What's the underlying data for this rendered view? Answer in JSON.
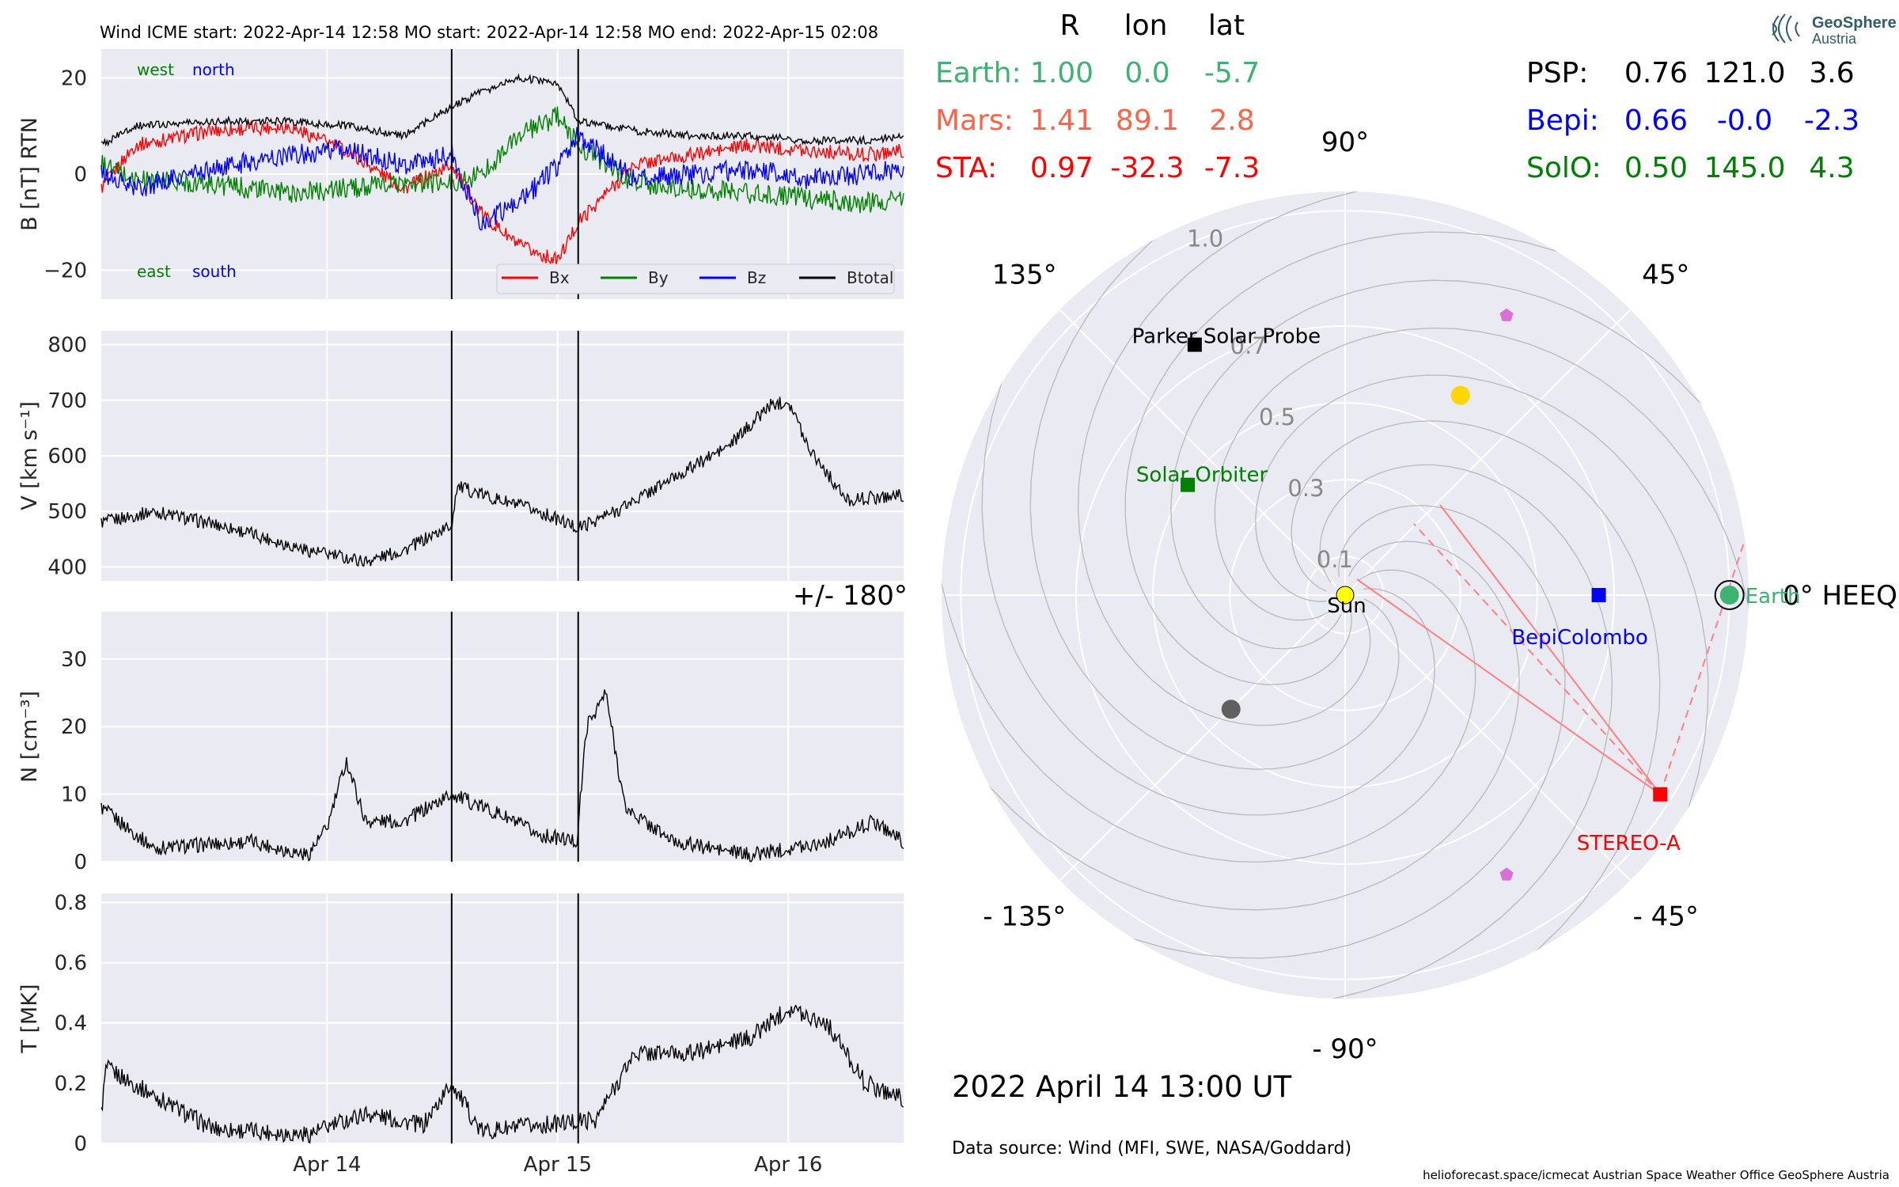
{
  "header": {
    "title": "Wind    ICME start: 2022-Apr-14 12:58   MO start: 2022-Apr-14 12:58   MO end: 2022-Apr-15 02:08"
  },
  "logo": {
    "line1": "GeoSphere",
    "line2": "Austria"
  },
  "colors": {
    "bx": "#ff0000",
    "by": "#008000",
    "bz": "#0000ff",
    "btotal": "#000000",
    "earth": "#3cb371",
    "mars": "#ff6347",
    "sta": "#ff0000",
    "psp": "#000000",
    "bepi": "#0000ff",
    "solo": "#008000",
    "axes_bg": "#eaeaf2"
  },
  "chart_data": [
    {
      "type": "line",
      "panel": "magnetic field",
      "ylabel": "B [nT] RTN",
      "ylim": [
        -26,
        26
      ],
      "yticks": [
        20,
        0,
        -20
      ],
      "ytick_labels": [
        "20",
        "0",
        "−20"
      ],
      "x_start": "2022-04-13 00:30",
      "x_end": "2022-04-16 12:00",
      "event_lines": [
        "2022-04-14 12:58",
        "2022-04-15 02:08"
      ],
      "corner_labels": {
        "top_left": "west",
        "top_right": "north",
        "bottom_left": "east",
        "bottom_right": "south"
      },
      "legend": [
        "Bx",
        "By",
        "Bz",
        "Btotal"
      ],
      "legend_loc": "lower right",
      "series": [
        {
          "name": "Bx",
          "x": [
            "04-13 00:30",
            "04-13 04:00",
            "04-13 12:00",
            "04-13 20:00",
            "04-14 02:00",
            "04-14 08:00",
            "04-14 12:58",
            "04-14 16:00",
            "04-14 20:00",
            "04-15 00:00",
            "04-15 02:08",
            "04-15 08:00",
            "04-15 14:00",
            "04-15 20:00",
            "04-16 02:00",
            "04-16 08:00",
            "04-16 12:00"
          ],
          "y": [
            -3,
            6,
            9,
            10,
            5,
            -3,
            2,
            -8,
            -15,
            -18,
            -10,
            2,
            4,
            6,
            5,
            4,
            5
          ]
        },
        {
          "name": "By",
          "x": [
            "04-13 00:30",
            "04-13 04:00",
            "04-13 12:00",
            "04-13 20:00",
            "04-14 02:00",
            "04-14 08:00",
            "04-14 12:58",
            "04-14 16:00",
            "04-14 20:00",
            "04-15 00:00",
            "04-15 02:08",
            "04-15 08:00",
            "04-15 14:00",
            "04-15 20:00",
            "04-16 02:00",
            "04-16 08:00",
            "04-16 12:00"
          ],
          "y": [
            2,
            -1,
            -2,
            -4,
            -3,
            -2,
            -2,
            0,
            8,
            12,
            6,
            -2,
            -3,
            -4,
            -5,
            -6,
            -5
          ]
        },
        {
          "name": "Bz",
          "x": [
            "04-13 00:30",
            "04-13 04:00",
            "04-13 12:00",
            "04-13 20:00",
            "04-14 02:00",
            "04-14 08:00",
            "04-14 12:58",
            "04-14 16:00",
            "04-14 20:00",
            "04-15 00:00",
            "04-15 02:08",
            "04-15 08:00",
            "04-15 14:00",
            "04-15 20:00",
            "04-16 02:00",
            "04-16 08:00",
            "04-16 12:00"
          ],
          "y": [
            0,
            -3,
            1,
            4,
            5,
            2,
            4,
            -10,
            -6,
            2,
            8,
            -1,
            0,
            1,
            -1,
            0,
            1
          ]
        },
        {
          "name": "Btotal",
          "x": [
            "04-13 00:30",
            "04-13 04:00",
            "04-13 12:00",
            "04-13 20:00",
            "04-14 02:00",
            "04-14 08:00",
            "04-14 12:58",
            "04-14 16:00",
            "04-14 20:00",
            "04-15 00:00",
            "04-15 02:08",
            "04-15 08:00",
            "04-15 14:00",
            "04-15 20:00",
            "04-16 02:00",
            "04-16 08:00",
            "04-16 12:00"
          ],
          "y": [
            6,
            10,
            11,
            11,
            10,
            8,
            14,
            17,
            20,
            19,
            11,
            9,
            8,
            8,
            7,
            7,
            8
          ]
        }
      ]
    },
    {
      "type": "line",
      "panel": "speed",
      "ylabel": "V [km s⁻¹]",
      "ylim": [
        375,
        825
      ],
      "yticks": [
        800,
        700,
        600,
        500,
        400
      ],
      "x_start": "2022-04-13 00:30",
      "x_end": "2022-04-16 12:00",
      "event_lines": [
        "2022-04-14 12:58",
        "2022-04-15 02:08"
      ],
      "series": [
        {
          "name": "V",
          "x": [
            "04-13 00:30",
            "04-13 06:00",
            "04-13 14:00",
            "04-13 22:00",
            "04-14 04:00",
            "04-14 08:00",
            "04-14 12:58",
            "04-14 13:30",
            "04-14 18:00",
            "04-14 22:00",
            "04-15 02:08",
            "04-15 06:00",
            "04-15 12:00",
            "04-15 18:00",
            "04-15 22:00",
            "04-16 00:00",
            "04-16 02:00",
            "04-16 06:00",
            "04-16 12:00"
          ],
          "y": [
            480,
            500,
            470,
            430,
            410,
            430,
            475,
            545,
            520,
            500,
            470,
            500,
            560,
            620,
            690,
            700,
            620,
            520,
            530
          ]
        }
      ]
    },
    {
      "type": "line",
      "panel": "density",
      "ylabel": "N [cm⁻³]",
      "ylim": [
        0,
        37
      ],
      "yticks": [
        30,
        20,
        10,
        0
      ],
      "x_start": "2022-04-13 00:30",
      "x_end": "2022-04-16 12:00",
      "event_lines": [
        "2022-04-14 12:58",
        "2022-04-15 02:08"
      ],
      "series": [
        {
          "name": "N",
          "x": [
            "04-13 00:30",
            "04-13 06:00",
            "04-13 16:00",
            "04-13 22:00",
            "04-14 00:00",
            "04-14 02:00",
            "04-14 04:00",
            "04-14 08:00",
            "04-14 12:58",
            "04-14 18:00",
            "04-14 22:00",
            "04-15 02:00",
            "04-15 03:00",
            "04-15 05:00",
            "04-15 07:00",
            "04-15 12:00",
            "04-15 20:00",
            "04-16 04:00",
            "04-16 09:00",
            "04-16 12:00"
          ],
          "y": [
            8,
            2,
            3,
            1,
            5,
            15,
            6,
            6,
            10,
            7,
            4,
            3,
            20,
            25,
            8,
            3,
            1,
            3,
            6,
            3
          ]
        }
      ]
    },
    {
      "type": "line",
      "panel": "temperature",
      "ylabel": "T [MK]",
      "ylim": [
        0,
        0.83
      ],
      "yticks": [
        0.8,
        0.6,
        0.4,
        0.2,
        0.0
      ],
      "xticks": [
        "Apr 14",
        "Apr 15",
        "Apr 16"
      ],
      "x_start": "2022-04-13 00:30",
      "x_end": "2022-04-16 12:00",
      "event_lines": [
        "2022-04-14 12:58",
        "2022-04-15 02:08"
      ],
      "series": [
        {
          "name": "T",
          "x": [
            "04-13 00:30",
            "04-13 01:00",
            "04-13 12:00",
            "04-13 22:00",
            "04-14 04:00",
            "04-14 10:00",
            "04-14 12:58",
            "04-14 16:00",
            "04-14 22:00",
            "04-15 04:00",
            "04-15 08:00",
            "04-15 14:00",
            "04-15 20:00",
            "04-16 00:00",
            "04-16 04:00",
            "04-16 08:00",
            "04-16 12:00"
          ],
          "y": [
            0.1,
            0.25,
            0.05,
            0.03,
            0.1,
            0.06,
            0.2,
            0.04,
            0.06,
            0.08,
            0.3,
            0.3,
            0.35,
            0.45,
            0.4,
            0.2,
            0.15
          ]
        }
      ]
    },
    {
      "type": "scatter",
      "panel": "polar positions",
      "r_ticks": [
        "0.1",
        "0.3",
        "0.5",
        "0.7",
        "1.0"
      ],
      "r_tick_values": [
        0.1,
        0.3,
        0.5,
        0.7,
        1.0
      ],
      "rlim": [
        0,
        1.05
      ],
      "angle_labels": [
        {
          "text": "0° HEEQ",
          "deg": 0
        },
        {
          "text": "45°",
          "deg": 45
        },
        {
          "text": "90°",
          "deg": 90
        },
        {
          "text": "135°",
          "deg": 135
        },
        {
          "text": "+/- 180°",
          "deg": 180
        },
        {
          "text": "- 135°",
          "deg": -135
        },
        {
          "text": "- 90°",
          "deg": -90
        },
        {
          "text": "- 45°",
          "deg": -45
        }
      ],
      "bodies": [
        {
          "label": "Sun",
          "r": 0.0,
          "lon": 0.0,
          "marker": "circle",
          "color": "#ffff00"
        },
        {
          "label": "Earth",
          "r": 1.0,
          "lon": 0.0,
          "marker": "circle-ring",
          "color": "#3cb371"
        },
        {
          "label": "STEREO-A",
          "r": 0.97,
          "lon": -32.3,
          "marker": "square",
          "color": "#ff0000"
        },
        {
          "label": "Parker Solar Probe",
          "r": 0.76,
          "lon": 121.0,
          "marker": "square",
          "color": "#000000"
        },
        {
          "label": "BepiColombo",
          "r": 0.66,
          "lon": 0.0,
          "marker": "square",
          "color": "#0000ff"
        },
        {
          "label": "Solar Orbiter",
          "r": 0.5,
          "lon": 145.0,
          "marker": "square",
          "color": "#008000"
        },
        {
          "label": "",
          "r": 0.6,
          "lon": 60.0,
          "marker": "circle",
          "color": "#ffd700"
        },
        {
          "label": "",
          "r": 0.42,
          "lon": -135.0,
          "marker": "circle",
          "color": "#606060"
        },
        {
          "label": "",
          "r": 0.84,
          "lon": 60.0,
          "marker": "pentagon",
          "color": "#da70d6"
        },
        {
          "label": "",
          "r": 0.84,
          "lon": -60.0,
          "marker": "pentagon",
          "color": "#da70d6"
        }
      ]
    }
  ],
  "position_table": {
    "headers": [
      "R",
      "lon",
      "lat"
    ],
    "left_rows": [
      {
        "name": "Earth:",
        "r": "1.00",
        "lon": "0.0",
        "lat": "-5.7",
        "color": "#3cb371"
      },
      {
        "name": "Mars:",
        "r": "1.41",
        "lon": "89.1",
        "lat": "2.8",
        "color": "#ff6347"
      },
      {
        "name": "STA:",
        "r": "0.97",
        "lon": "-32.3",
        "lat": "-7.3",
        "color": "#ff0000"
      }
    ],
    "right_rows": [
      {
        "name": "PSP:",
        "r": "0.76",
        "lon": "121.0",
        "lat": "3.6",
        "color": "#000000"
      },
      {
        "name": "Bepi:",
        "r": "0.66",
        "lon": "-0.0",
        "lat": "-2.3",
        "color": "#0000ff"
      },
      {
        "name": "SolO:",
        "r": "0.50",
        "lon": "145.0",
        "lat": "4.3",
        "color": "#008000"
      }
    ]
  },
  "timestamp": "2022 April 14  13:00 UT",
  "data_source": "Data source: Wind (MFI, SWE, NASA/Goddard)",
  "footer": "helioforecast.space/icmecat   Austrian Space Weather Office   GeoSphere Austria"
}
